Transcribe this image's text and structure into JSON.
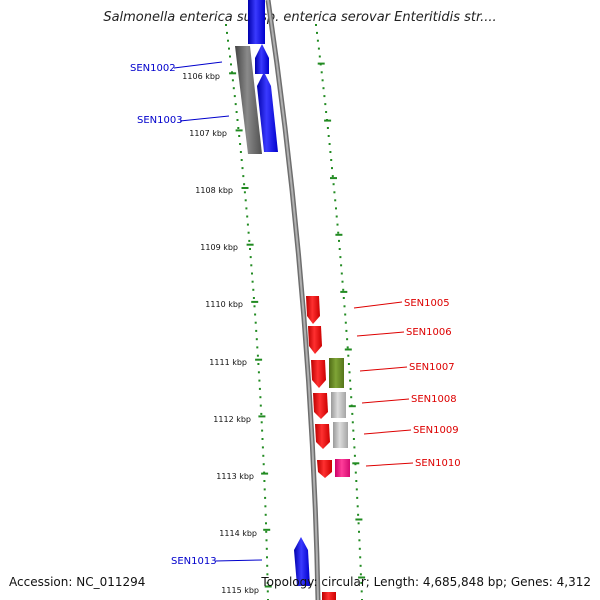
{
  "title": "Salmonella enterica subsp. enterica serovar Enteritidis str....",
  "footer": {
    "accession": "Accession: NC_011294",
    "summary": "Topology: circular; Length: 4,685,848 bp; Genes: 4,312"
  },
  "colors": {
    "forward_gene": "#0000ff",
    "reverse_gene": "#ff0000",
    "pseudogene": "#666666",
    "olive_feature": "#6b8e23",
    "grey_feature": "#bbbbbb",
    "magenta_feature": "#ff1493",
    "tick": "#228b22",
    "backbone": "#8c8c8c",
    "label_forward": "#0000cc",
    "label_reverse": "#dd0000"
  },
  "scale_labels": [
    "1106 kbp",
    "1107 kbp",
    "1108 kbp",
    "1109 kbp",
    "1110 kbp",
    "1111 kbp",
    "1112 kbp",
    "1113 kbp",
    "1114 kbp",
    "1115 kbp"
  ],
  "gene_labels": [
    {
      "text": "SEN1002",
      "strand": "forward"
    },
    {
      "text": "SEN1003",
      "strand": "forward"
    },
    {
      "text": "SEN1005",
      "strand": "reverse"
    },
    {
      "text": "SEN1006",
      "strand": "reverse"
    },
    {
      "text": "SEN1007",
      "strand": "reverse"
    },
    {
      "text": "SEN1008",
      "strand": "reverse"
    },
    {
      "text": "SEN1009",
      "strand": "reverse"
    },
    {
      "text": "SEN1010",
      "strand": "reverse"
    },
    {
      "text": "SEN1013",
      "strand": "forward"
    }
  ]
}
